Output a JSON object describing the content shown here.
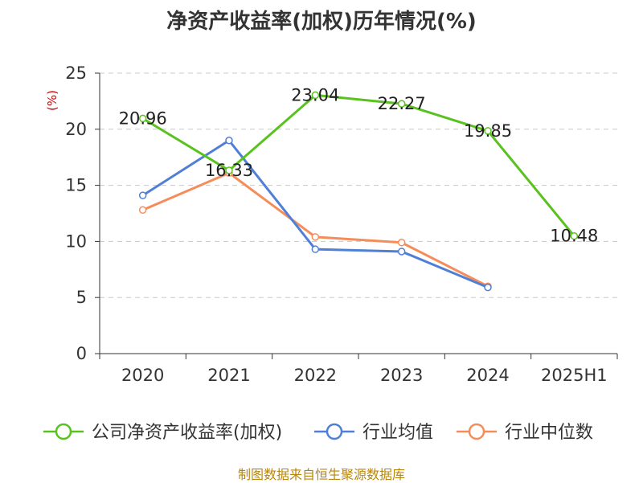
{
  "chart_data": {
    "type": "line",
    "title": "净资产收益率(加权)历年情况(%)",
    "ylabel": "(%)",
    "categories": [
      "2020",
      "2021",
      "2022",
      "2023",
      "2024",
      "2025H1"
    ],
    "yticks": [
      "0",
      "5",
      "10",
      "15",
      "20",
      "25"
    ],
    "ylim": [
      0,
      25
    ],
    "grid": "horizontal dashed",
    "legend_position": "bottom",
    "series": [
      {
        "name": "公司净资产收益率(加权)",
        "color": "#5ac21f",
        "values": [
          20.96,
          16.33,
          23.04,
          22.27,
          19.85,
          10.48
        ],
        "labels": [
          "20.96",
          "16.33",
          "23.04",
          "22.27",
          "19.85",
          "10.48"
        ]
      },
      {
        "name": "行业均值",
        "color": "#4f7fd6",
        "values": [
          14.1,
          19.0,
          9.3,
          9.1,
          5.9,
          null
        ]
      },
      {
        "name": "行业中位数",
        "color": "#f58d5b",
        "values": [
          12.8,
          16.1,
          10.4,
          9.9,
          6.0,
          null
        ]
      }
    ]
  },
  "source_note": "制图数据来自恒生聚源数据库"
}
